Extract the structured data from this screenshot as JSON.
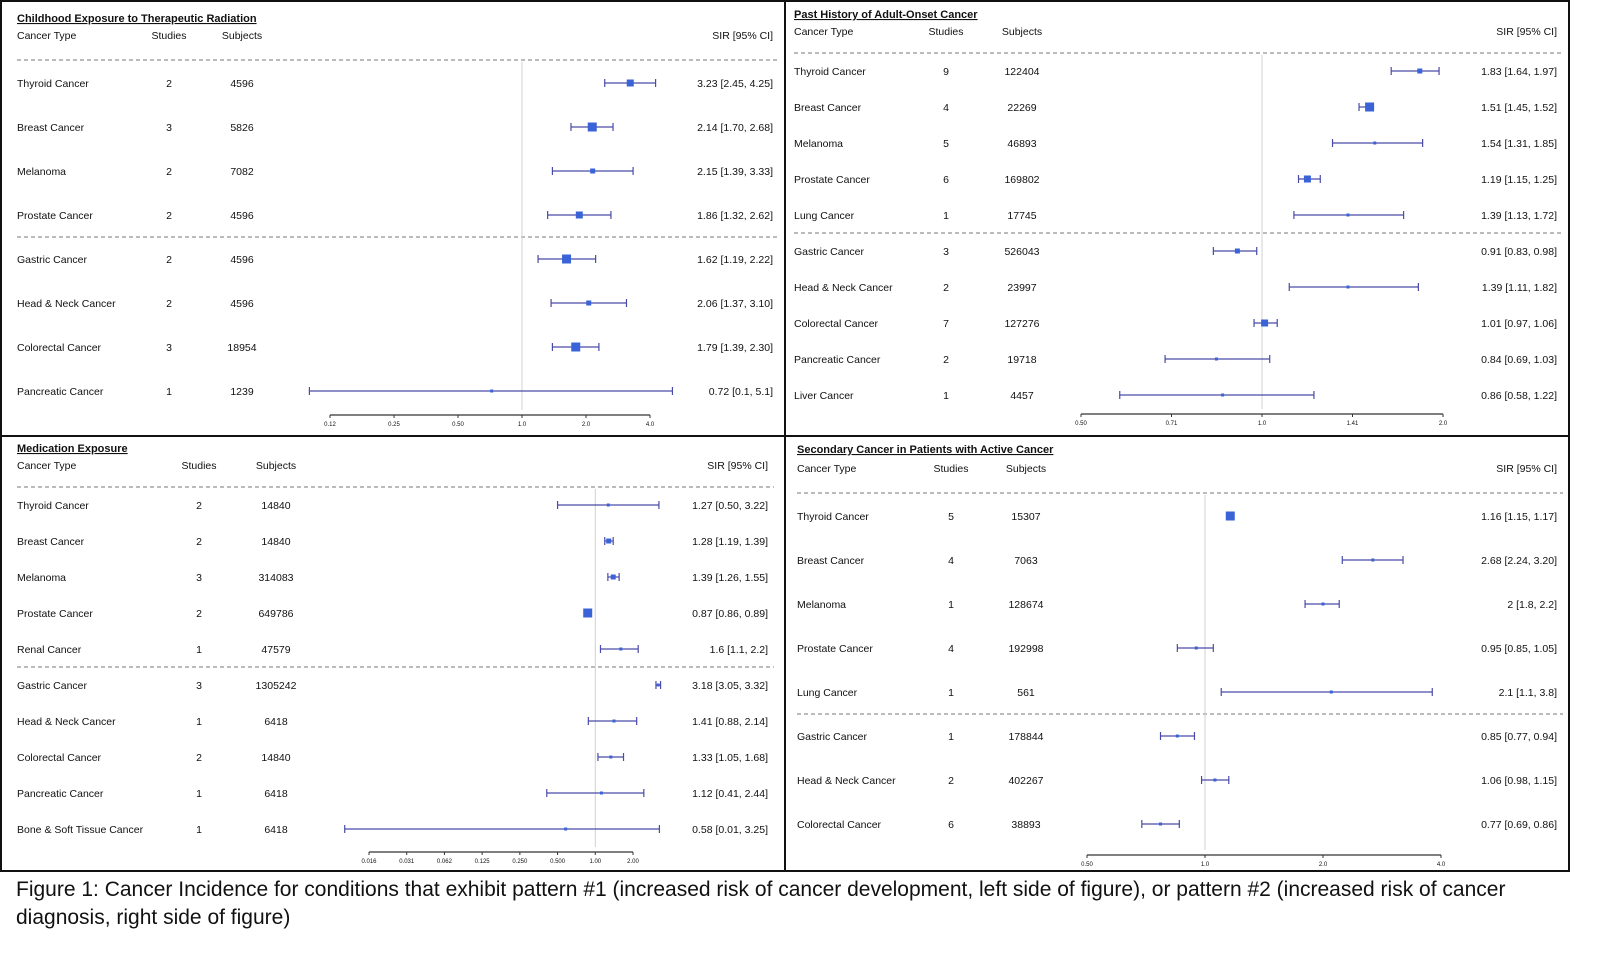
{
  "colors": {
    "marker": "#3b63d8",
    "ci_line": "#4a4aa8",
    "reference_line": "#d0d0d0",
    "axis": "#333333"
  },
  "headers": {
    "cancer_type": "Cancer Type",
    "studies": "Studies",
    "subjects": "Subjects",
    "sir": "SIR [95% CI]"
  },
  "caption": "Figure 1: Cancer Incidence for conditions that exhibit pattern #1 (increased risk of cancer development, left side of figure), or pattern #2 (increased risk of cancer diagnosis, right side of figure)",
  "chart_data": [
    {
      "type": "forest",
      "title": "Childhood Exposure to Therapeutic Radiation",
      "x_scale": "log2",
      "reference_value": 1.0,
      "ticks": [
        "0.12",
        "0.25",
        "0.50",
        "1.0",
        "2.0",
        "4.0"
      ],
      "tick_values": [
        0.125,
        0.25,
        0.5,
        1,
        2,
        4
      ],
      "group_break_after": 4,
      "rows": [
        {
          "name": "Thyroid Cancer",
          "studies": "2",
          "subjects": "4596",
          "sir": 3.23,
          "lo": 2.45,
          "hi": 4.25,
          "label": "3.23 [2.45, 4.25]",
          "weight": 2
        },
        {
          "name": "Breast Cancer",
          "studies": "3",
          "subjects": "5826",
          "sir": 2.14,
          "lo": 1.7,
          "hi": 2.68,
          "label": "2.14 [1.70, 2.68]",
          "weight": 3
        },
        {
          "name": "Melanoma",
          "studies": "2",
          "subjects": "7082",
          "sir": 2.15,
          "lo": 1.39,
          "hi": 3.33,
          "label": "2.15 [1.39, 3.33]",
          "weight": 1
        },
        {
          "name": "Prostate Cancer",
          "studies": "2",
          "subjects": "4596",
          "sir": 1.86,
          "lo": 1.32,
          "hi": 2.62,
          "label": "1.86 [1.32, 2.62]",
          "weight": 2
        },
        {
          "name": "Gastric Cancer",
          "studies": "2",
          "subjects": "4596",
          "sir": 1.62,
          "lo": 1.19,
          "hi": 2.22,
          "label": "1.62 [1.19, 2.22]",
          "weight": 3
        },
        {
          "name": "Head & Neck Cancer",
          "studies": "2",
          "subjects": "4596",
          "sir": 2.06,
          "lo": 1.37,
          "hi": 3.1,
          "label": "2.06 [1.37, 3.10]",
          "weight": 1
        },
        {
          "name": "Colorectal Cancer",
          "studies": "3",
          "subjects": "18954",
          "sir": 1.79,
          "lo": 1.39,
          "hi": 2.3,
          "label": "1.79 [1.39, 2.30]",
          "weight": 3
        },
        {
          "name": "Pancreatic Cancer",
          "studies": "1",
          "subjects": "1239",
          "sir": 0.72,
          "lo": 0.1,
          "hi": 5.1,
          "label": "0.72 [0.1, 5.1]",
          "weight": 0
        }
      ]
    },
    {
      "type": "forest",
      "title": "Past History of Adult-Onset Cancer",
      "x_scale": "log2",
      "reference_value": 1.0,
      "ticks": [
        "0.50",
        "0.71",
        "1.0",
        "1.41",
        "2.0"
      ],
      "tick_values": [
        0.5,
        0.7071,
        1,
        1.4142,
        2
      ],
      "group_break_after": 5,
      "rows": [
        {
          "name": "Thyroid Cancer",
          "studies": "9",
          "subjects": "122404",
          "sir": 1.83,
          "lo": 1.64,
          "hi": 1.97,
          "label": "1.83 [1.64, 1.97]",
          "weight": 1
        },
        {
          "name": "Breast Cancer",
          "studies": "4",
          "subjects": "22269",
          "sir": 1.51,
          "lo": 1.45,
          "hi": 1.52,
          "label": "1.51 [1.45, 1.52]",
          "weight": 3
        },
        {
          "name": "Melanoma",
          "studies": "5",
          "subjects": "46893",
          "sir": 1.54,
          "lo": 1.31,
          "hi": 1.85,
          "label": "1.54 [1.31, 1.85]",
          "weight": 0
        },
        {
          "name": "Prostate Cancer",
          "studies": "6",
          "subjects": "169802",
          "sir": 1.19,
          "lo": 1.15,
          "hi": 1.25,
          "label": "1.19 [1.15, 1.25]",
          "weight": 2
        },
        {
          "name": "Lung Cancer",
          "studies": "1",
          "subjects": "17745",
          "sir": 1.39,
          "lo": 1.13,
          "hi": 1.72,
          "label": "1.39 [1.13, 1.72]",
          "weight": 0
        },
        {
          "name": "Gastric Cancer",
          "studies": "3",
          "subjects": "526043",
          "sir": 0.91,
          "lo": 0.83,
          "hi": 0.98,
          "label": "0.91 [0.83, 0.98]",
          "weight": 1
        },
        {
          "name": "Head & Neck Cancer",
          "studies": "2",
          "subjects": "23997",
          "sir": 1.39,
          "lo": 1.11,
          "hi": 1.82,
          "label": "1.39 [1.11, 1.82]",
          "weight": 0
        },
        {
          "name": "Colorectal Cancer",
          "studies": "7",
          "subjects": "127276",
          "sir": 1.01,
          "lo": 0.97,
          "hi": 1.06,
          "label": "1.01 [0.97, 1.06]",
          "weight": 2
        },
        {
          "name": "Pancreatic Cancer",
          "studies": "2",
          "subjects": "19718",
          "sir": 0.84,
          "lo": 0.69,
          "hi": 1.03,
          "label": "0.84 [0.69, 1.03]",
          "weight": 0
        },
        {
          "name": "Liver Cancer",
          "studies": "1",
          "subjects": "4457",
          "sir": 0.86,
          "lo": 0.58,
          "hi": 1.22,
          "label": "0.86 [0.58, 1.22]",
          "weight": 0
        }
      ]
    },
    {
      "type": "forest",
      "title": "Medication Exposure",
      "x_scale": "log2",
      "reference_value": 1.0,
      "ticks": [
        "0.016",
        "0.031",
        "0.062",
        "0.125",
        "0.250",
        "0.500",
        "1.00",
        "2.00"
      ],
      "tick_values": [
        0.015625,
        0.03125,
        0.0625,
        0.125,
        0.25,
        0.5,
        1,
        2
      ],
      "group_break_after": 5,
      "rows": [
        {
          "name": "Thyroid Cancer",
          "studies": "2",
          "subjects": "14840",
          "sir": 1.27,
          "lo": 0.5,
          "hi": 3.22,
          "label": "1.27 [0.50, 3.22]",
          "weight": 0
        },
        {
          "name": "Breast Cancer",
          "studies": "2",
          "subjects": "14840",
          "sir": 1.28,
          "lo": 1.19,
          "hi": 1.39,
          "label": "1.28 [1.19, 1.39]",
          "weight": 1
        },
        {
          "name": "Melanoma",
          "studies": "3",
          "subjects": "314083",
          "sir": 1.39,
          "lo": 1.26,
          "hi": 1.55,
          "label": "1.39 [1.26, 1.55]",
          "weight": 1
        },
        {
          "name": "Prostate Cancer",
          "studies": "2",
          "subjects": "649786",
          "sir": 0.87,
          "lo": 0.86,
          "hi": 0.89,
          "label": "0.87 [0.86, 0.89]",
          "weight": 3
        },
        {
          "name": "Renal Cancer",
          "studies": "1",
          "subjects": "47579",
          "sir": 1.6,
          "lo": 1.1,
          "hi": 2.2,
          "label": "1.6 [1.1, 2.2]",
          "weight": 0
        },
        {
          "name": "Gastric Cancer",
          "studies": "3",
          "subjects": "1305242",
          "sir": 3.18,
          "lo": 3.05,
          "hi": 3.32,
          "label": "3.18 [3.05, 3.32]",
          "weight": 0
        },
        {
          "name": "Head & Neck Cancer",
          "studies": "1",
          "subjects": "6418",
          "sir": 1.41,
          "lo": 0.88,
          "hi": 2.14,
          "label": "1.41 [0.88, 2.14]",
          "weight": 0
        },
        {
          "name": "Colorectal Cancer",
          "studies": "2",
          "subjects": "14840",
          "sir": 1.33,
          "lo": 1.05,
          "hi": 1.68,
          "label": "1.33 [1.05, 1.68]",
          "weight": 0
        },
        {
          "name": "Pancreatic Cancer",
          "studies": "1",
          "subjects": "6418",
          "sir": 1.12,
          "lo": 0.41,
          "hi": 2.44,
          "label": "1.12 [0.41, 2.44]",
          "weight": 0
        },
        {
          "name": "Bone & Soft Tissue Cancer",
          "studies": "1",
          "subjects": "6418",
          "sir": 0.58,
          "lo": 0.01,
          "hi": 3.25,
          "label": "0.58 [0.01, 3.25]",
          "weight": 0
        }
      ]
    },
    {
      "type": "forest",
      "title": "Secondary Cancer in Patients with Active Cancer",
      "x_scale": "log2",
      "reference_value": 1.0,
      "ticks": [
        "0.50",
        "1.0",
        "2.0",
        "4.0"
      ],
      "tick_values": [
        0.5,
        1,
        2,
        4
      ],
      "group_break_after": 5,
      "rows": [
        {
          "name": "Thyroid Cancer",
          "studies": "5",
          "subjects": "15307",
          "sir": 1.16,
          "lo": 1.15,
          "hi": 1.17,
          "label": "1.16 [1.15, 1.17]",
          "weight": 3
        },
        {
          "name": "Breast Cancer",
          "studies": "4",
          "subjects": "7063",
          "sir": 2.68,
          "lo": 2.24,
          "hi": 3.2,
          "label": "2.68 [2.24, 3.20]",
          "weight": 0
        },
        {
          "name": "Melanoma",
          "studies": "1",
          "subjects": "128674",
          "sir": 2,
          "lo": 1.8,
          "hi": 2.2,
          "label": "2 [1.8, 2.2]",
          "weight": 0
        },
        {
          "name": "Prostate Cancer",
          "studies": "4",
          "subjects": "192998",
          "sir": 0.95,
          "lo": 0.85,
          "hi": 1.05,
          "label": "0.95 [0.85, 1.05]",
          "weight": 0
        },
        {
          "name": "Lung Cancer",
          "studies": "1",
          "subjects": "561",
          "sir": 2.1,
          "lo": 1.1,
          "hi": 3.8,
          "label": "2.1 [1.1, 3.8]",
          "weight": 0
        },
        {
          "name": "Gastric Cancer",
          "studies": "1",
          "subjects": "178844",
          "sir": 0.85,
          "lo": 0.77,
          "hi": 0.94,
          "label": "0.85 [0.77, 0.94]",
          "weight": 0
        },
        {
          "name": "Head & Neck Cancer",
          "studies": "2",
          "subjects": "402267",
          "sir": 1.06,
          "lo": 0.98,
          "hi": 1.15,
          "label": "1.06 [0.98, 1.15]",
          "weight": 0
        },
        {
          "name": "Colorectal Cancer",
          "studies": "6",
          "subjects": "38893",
          "sir": 0.77,
          "lo": 0.69,
          "hi": 0.86,
          "label": "0.77 [0.69, 0.86]",
          "weight": 0
        }
      ]
    }
  ]
}
